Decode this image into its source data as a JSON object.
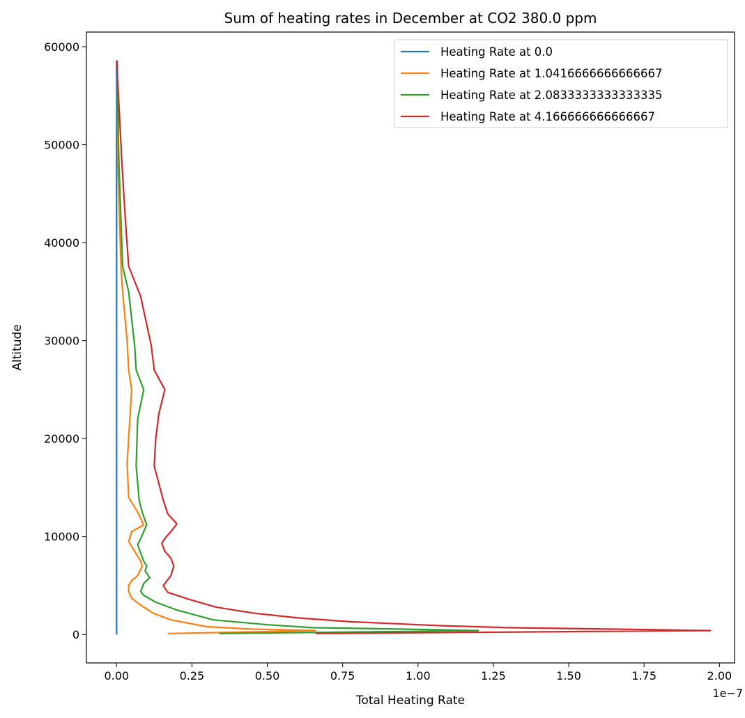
{
  "chart_data": {
    "type": "line",
    "title": "Sum of heating rates in December at CO2 380.0 ppm",
    "xlabel": "Total Heating Rate",
    "ylabel": "Altitude",
    "x_offset_label": "1e−7",
    "xlim": [
      -0.1,
      2.05
    ],
    "ylim": [
      -2900,
      61500
    ],
    "x_ticks": [
      0.0,
      0.25,
      0.5,
      0.75,
      1.0,
      1.25,
      1.5,
      1.75,
      2.0
    ],
    "x_tick_labels": [
      "0.00",
      "0.25",
      "0.50",
      "0.75",
      "1.00",
      "1.25",
      "1.50",
      "1.75",
      "2.00"
    ],
    "y_ticks": [
      0,
      10000,
      20000,
      30000,
      40000,
      50000,
      60000
    ],
    "y_tick_labels": [
      "0",
      "10000",
      "20000",
      "30000",
      "40000",
      "50000",
      "60000"
    ],
    "grid": false,
    "legend_position": "top-right",
    "series": [
      {
        "name": "Heating Rate at 0.0",
        "color": "#1f77b4",
        "points": [
          [
            0.0,
            0
          ],
          [
            0.0,
            58600
          ]
        ]
      },
      {
        "name": "Heating Rate at 1.0416666666666667",
        "color": "#ff7f0e",
        "points": [
          [
            0.17,
            100
          ],
          [
            0.66,
            400
          ],
          [
            0.45,
            550
          ],
          [
            0.3,
            800
          ],
          [
            0.18,
            1500
          ],
          [
            0.12,
            2200
          ],
          [
            0.08,
            3000
          ],
          [
            0.05,
            3700
          ],
          [
            0.04,
            4400
          ],
          [
            0.04,
            5000
          ],
          [
            0.05,
            5500
          ],
          [
            0.07,
            6000
          ],
          [
            0.085,
            7000
          ],
          [
            0.08,
            7500
          ],
          [
            0.06,
            8500
          ],
          [
            0.04,
            9500
          ],
          [
            0.05,
            10500
          ],
          [
            0.09,
            11200
          ],
          [
            0.07,
            12500
          ],
          [
            0.04,
            14000
          ],
          [
            0.035,
            17500
          ],
          [
            0.04,
            20000
          ],
          [
            0.045,
            22500
          ],
          [
            0.05,
            25000
          ],
          [
            0.04,
            27000
          ],
          [
            0.035,
            30000
          ],
          [
            0.02,
            35000
          ],
          [
            0.015,
            37500
          ],
          [
            0.01,
            42000
          ],
          [
            0.005,
            48000
          ],
          [
            0.003,
            54000
          ],
          [
            0.002,
            58600
          ]
        ]
      },
      {
        "name": "Heating Rate at 2.0833333333333335",
        "color": "#2ca02c",
        "points": [
          [
            0.34,
            100
          ],
          [
            1.2,
            400
          ],
          [
            0.95,
            550
          ],
          [
            0.65,
            700
          ],
          [
            0.5,
            1000
          ],
          [
            0.32,
            1500
          ],
          [
            0.2,
            2500
          ],
          [
            0.13,
            3300
          ],
          [
            0.09,
            4000
          ],
          [
            0.08,
            4400
          ],
          [
            0.09,
            5200
          ],
          [
            0.11,
            5800
          ],
          [
            0.095,
            6500
          ],
          [
            0.1,
            7000
          ],
          [
            0.09,
            7500
          ],
          [
            0.08,
            8300
          ],
          [
            0.07,
            9200
          ],
          [
            0.08,
            9800
          ],
          [
            0.1,
            11200
          ],
          [
            0.085,
            12500
          ],
          [
            0.075,
            13700
          ],
          [
            0.065,
            17200
          ],
          [
            0.07,
            22000
          ],
          [
            0.09,
            25000
          ],
          [
            0.065,
            27000
          ],
          [
            0.06,
            29500
          ],
          [
            0.04,
            35000
          ],
          [
            0.02,
            37600
          ],
          [
            0.015,
            42000
          ],
          [
            0.008,
            48000
          ],
          [
            0.004,
            54000
          ],
          [
            0.002,
            58600
          ]
        ]
      },
      {
        "name": "Heating Rate at 4.166666666666667",
        "color": "#d62728",
        "points": [
          [
            0.66,
            100
          ],
          [
            1.97,
            400
          ],
          [
            1.65,
            550
          ],
          [
            1.3,
            700
          ],
          [
            1.08,
            900
          ],
          [
            0.93,
            1100
          ],
          [
            0.78,
            1300
          ],
          [
            0.6,
            1700
          ],
          [
            0.45,
            2200
          ],
          [
            0.33,
            2800
          ],
          [
            0.24,
            3600
          ],
          [
            0.17,
            4300
          ],
          [
            0.155,
            5000
          ],
          [
            0.17,
            5600
          ],
          [
            0.18,
            6000
          ],
          [
            0.19,
            7000
          ],
          [
            0.18,
            7800
          ],
          [
            0.16,
            8500
          ],
          [
            0.15,
            9300
          ],
          [
            0.16,
            9800
          ],
          [
            0.18,
            10500
          ],
          [
            0.2,
            11300
          ],
          [
            0.17,
            12300
          ],
          [
            0.155,
            13700
          ],
          [
            0.125,
            17200
          ],
          [
            0.13,
            20000
          ],
          [
            0.14,
            22500
          ],
          [
            0.16,
            25000
          ],
          [
            0.125,
            27000
          ],
          [
            0.115,
            29500
          ],
          [
            0.08,
            34500
          ],
          [
            0.04,
            37600
          ],
          [
            0.03,
            42000
          ],
          [
            0.018,
            48000
          ],
          [
            0.008,
            54000
          ],
          [
            0.0,
            58600
          ]
        ]
      }
    ]
  }
}
